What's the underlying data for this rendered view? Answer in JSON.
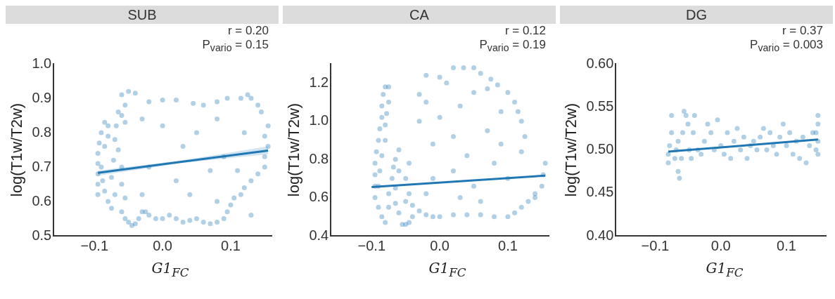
{
  "chart_data": [
    {
      "type": "scatter",
      "title": "SUB",
      "xlabel": "G1$_{FC}$",
      "ylabel": "log(T1w/T2w)",
      "annotations": [
        "r = 0.20",
        "P$_{vario}$ = 0.15"
      ],
      "xlim": [
        -0.16,
        0.16
      ],
      "xticks": [
        {
          "value": -0.1,
          "label": "−0.1"
        },
        {
          "value": 0,
          "label": "0.0"
        },
        {
          "value": 0.1,
          "label": "0.1"
        }
      ],
      "ylim": [
        0.5,
        1.0
      ],
      "yticks": [
        {
          "value": 0.5,
          "label": "0.5"
        },
        {
          "value": 0.6,
          "label": "0.6"
        },
        {
          "value": 0.7,
          "label": "0.7"
        },
        {
          "value": 0.8,
          "label": "0.8"
        },
        {
          "value": 0.9,
          "label": "0.9"
        },
        {
          "value": 1.0,
          "label": "1.0"
        }
      ],
      "series": [
        {
          "marker": "circle",
          "color": "#1f77b4",
          "x": [
            -0.095,
            -0.095,
            -0.095,
            -0.095,
            -0.095,
            -0.093,
            -0.09,
            -0.085,
            -0.08,
            -0.08,
            -0.085,
            -0.09,
            -0.088,
            -0.085,
            -0.08,
            -0.075,
            -0.07,
            -0.075,
            -0.072,
            -0.07,
            -0.068,
            -0.065,
            -0.06,
            -0.055,
            -0.065,
            -0.06,
            -0.06,
            -0.055,
            -0.06,
            -0.055,
            -0.05,
            -0.045,
            -0.04,
            -0.035,
            -0.03,
            -0.025,
            -0.02,
            -0.01,
            0.0,
            0.01,
            0.02,
            0.03,
            0.04,
            0.05,
            0.06,
            0.07,
            0.08,
            0.09,
            0.095,
            0.1,
            0.105,
            0.115,
            0.12,
            0.13,
            0.14,
            0.15,
            0.15,
            0.155,
            0.15,
            0.155,
            0.145,
            0.14,
            0.13,
            0.125,
            0.115,
            0.095,
            0.08,
            0.06,
            0.045,
            0.02,
            0.0,
            -0.02,
            -0.04,
            -0.05,
            -0.06,
            -0.055,
            -0.03,
            0.0,
            0.05,
            0.08,
            0.12,
            0.03,
            0.09,
            -0.02,
            0.02,
            0.07,
            0.11,
            -0.03,
            0.04,
            0.08,
            0.13
          ],
          "values": [
            0.62,
            0.65,
            0.68,
            0.71,
            0.74,
            0.77,
            0.8,
            0.83,
            0.82,
            0.79,
            0.76,
            0.7,
            0.66,
            0.63,
            0.6,
            0.58,
            0.62,
            0.67,
            0.72,
            0.78,
            0.82,
            0.86,
            0.85,
            0.83,
            0.75,
            0.7,
            0.65,
            0.61,
            0.57,
            0.55,
            0.54,
            0.53,
            0.535,
            0.55,
            0.57,
            0.57,
            0.56,
            0.55,
            0.55,
            0.56,
            0.55,
            0.54,
            0.545,
            0.55,
            0.54,
            0.535,
            0.54,
            0.55,
            0.57,
            0.59,
            0.61,
            0.62,
            0.64,
            0.66,
            0.68,
            0.7,
            0.73,
            0.76,
            0.79,
            0.82,
            0.86,
            0.88,
            0.9,
            0.91,
            0.9,
            0.9,
            0.89,
            0.88,
            0.885,
            0.895,
            0.895,
            0.89,
            0.915,
            0.92,
            0.91,
            0.88,
            0.84,
            0.82,
            0.8,
            0.84,
            0.8,
            0.76,
            0.73,
            0.7,
            0.66,
            0.69,
            0.69,
            0.62,
            0.62,
            0.6,
            0.56
          ]
        },
        {
          "type": "line",
          "color": "#1f77b4",
          "x": [
            -0.095,
            0.03,
            0.155
          ],
          "values": [
            0.683,
            0.716,
            0.748
          ],
          "lower": [
            0.675,
            0.712,
            0.737
          ],
          "upper": [
            0.69,
            0.72,
            0.76
          ],
          "marker": "none"
        }
      ]
    },
    {
      "type": "scatter",
      "title": "CA",
      "xlabel": "G1$_{FC}$",
      "ylabel": "log(T1w/T2w)",
      "annotations": [
        "r = 0.12",
        "P$_{vario}$ = 0.19"
      ],
      "xlim": [
        -0.16,
        0.16
      ],
      "xticks": [
        {
          "value": -0.1,
          "label": "−0.1"
        },
        {
          "value": 0,
          "label": "0.0"
        },
        {
          "value": 0.1,
          "label": "0.1"
        }
      ],
      "ylim": [
        0.4,
        1.3
      ],
      "yticks": [
        {
          "value": 0.4,
          "label": "0.4"
        },
        {
          "value": 0.6,
          "label": "0.6"
        },
        {
          "value": 0.8,
          "label": "0.8"
        },
        {
          "value": 1.0,
          "label": "1.0"
        },
        {
          "value": 1.2,
          "label": "1.2"
        }
      ],
      "series": [
        {
          "marker": "circle",
          "color": "#1f77b4",
          "x": [
            -0.095,
            -0.095,
            -0.095,
            -0.095,
            -0.093,
            -0.09,
            -0.088,
            -0.085,
            -0.085,
            -0.083,
            -0.08,
            -0.075,
            -0.075,
            -0.078,
            -0.08,
            -0.08,
            -0.085,
            -0.088,
            -0.09,
            -0.09,
            -0.085,
            -0.08,
            -0.075,
            -0.075,
            -0.07,
            -0.068,
            -0.065,
            -0.06,
            -0.06,
            -0.065,
            -0.065,
            -0.06,
            -0.055,
            -0.05,
            -0.045,
            -0.04,
            -0.04,
            -0.05,
            -0.045,
            -0.05,
            -0.045,
            -0.03,
            -0.02,
            -0.01,
            0.0,
            0.02,
            0.04,
            0.06,
            0.08,
            0.1,
            0.11,
            0.12,
            0.13,
            0.14,
            0.15,
            0.152,
            0.155,
            0.14,
            0.12,
            0.125,
            0.12,
            0.115,
            0.11,
            0.1,
            0.085,
            0.075,
            0.06,
            0.05,
            0.035,
            0.02,
            0.0,
            -0.02,
            -0.03,
            -0.03,
            -0.02,
            0.01,
            0.03,
            0.05,
            0.07,
            0.09,
            0.0,
            -0.01,
            0.02,
            0.04,
            0.07,
            0.09,
            -0.01,
            0.02,
            0.05,
            0.08,
            0.1,
            0.03,
            0.06,
            -0.02
          ],
          "values": [
            0.6,
            0.66,
            0.72,
            0.78,
            0.84,
            0.9,
            0.96,
            1.02,
            1.08,
            1.14,
            1.18,
            1.18,
            1.1,
            1.04,
            0.98,
            0.9,
            0.82,
            0.74,
            0.66,
            0.55,
            0.5,
            0.47,
            0.55,
            0.62,
            0.7,
            0.76,
            0.8,
            0.85,
            0.74,
            0.65,
            0.57,
            0.52,
            0.46,
            0.46,
            0.47,
            0.5,
            0.56,
            0.58,
            0.62,
            0.7,
            0.78,
            0.53,
            0.51,
            0.5,
            0.5,
            0.51,
            0.51,
            0.51,
            0.5,
            0.5,
            0.52,
            0.55,
            0.58,
            0.62,
            0.66,
            0.72,
            0.78,
            0.6,
            0.84,
            0.92,
            1.0,
            1.05,
            1.1,
            1.15,
            1.19,
            1.22,
            1.25,
            1.28,
            1.28,
            1.28,
            1.23,
            1.24,
            1.14,
            1.0,
            1.1,
            1.2,
            1.08,
            1.15,
            1.17,
            1.05,
            1.02,
            0.88,
            0.92,
            0.82,
            0.95,
            0.88,
            0.7,
            0.74,
            0.66,
            0.78,
            0.7,
            0.6,
            0.58,
            0.62
          ]
        },
        {
          "type": "line",
          "color": "#1f77b4",
          "x": [
            -0.1,
            0.155
          ],
          "values": [
            0.655,
            0.715
          ],
          "marker": "none"
        }
      ]
    },
    {
      "type": "scatter",
      "title": "DG",
      "xlabel": "G1$_{FC}$",
      "ylabel": "log(T1w/T2w)",
      "annotations": [
        "r = 0.37",
        "P$_{vario}$ = 0.003"
      ],
      "xlim": [
        -0.16,
        0.16
      ],
      "xticks": [
        {
          "value": -0.1,
          "label": "−0.1"
        },
        {
          "value": 0,
          "label": "0.0"
        },
        {
          "value": 0.1,
          "label": "0.1"
        }
      ],
      "ylim": [
        0.4,
        0.6
      ],
      "yticks": [
        {
          "value": 0.4,
          "label": "0.40"
        },
        {
          "value": 0.45,
          "label": "0.45"
        },
        {
          "value": 0.5,
          "label": "0.50"
        },
        {
          "value": 0.55,
          "label": "0.55"
        },
        {
          "value": 0.6,
          "label": "0.60"
        }
      ],
      "series": [
        {
          "marker": "circle",
          "color": "#1f77b4",
          "x": [
            -0.08,
            -0.08,
            -0.078,
            -0.075,
            -0.075,
            -0.07,
            -0.068,
            -0.065,
            -0.065,
            -0.063,
            -0.06,
            -0.058,
            -0.056,
            -0.053,
            -0.05,
            -0.048,
            -0.045,
            -0.042,
            -0.04,
            -0.035,
            -0.03,
            -0.025,
            -0.02,
            -0.015,
            -0.01,
            -0.005,
            0.0,
            0.005,
            0.01,
            0.015,
            0.02,
            0.025,
            0.03,
            0.035,
            0.04,
            0.045,
            0.05,
            0.055,
            0.06,
            0.065,
            0.07,
            0.075,
            0.08,
            0.085,
            0.09,
            0.095,
            0.1,
            0.105,
            0.11,
            0.115,
            0.12,
            0.125,
            0.13,
            0.135,
            0.14,
            0.145,
            0.148,
            0.148,
            0.148,
            0.148,
            0.145
          ],
          "values": [
            0.485,
            0.495,
            0.505,
            0.52,
            0.54,
            0.49,
            0.5,
            0.51,
            0.475,
            0.467,
            0.49,
            0.52,
            0.545,
            0.54,
            0.53,
            0.5,
            0.49,
            0.52,
            0.54,
            0.5,
            0.495,
            0.51,
            0.53,
            0.52,
            0.5,
            0.535,
            0.505,
            0.495,
            0.52,
            0.49,
            0.51,
            0.525,
            0.5,
            0.515,
            0.49,
            0.505,
            0.51,
            0.5,
            0.515,
            0.525,
            0.5,
            0.52,
            0.505,
            0.495,
            0.515,
            0.53,
            0.505,
            0.52,
            0.495,
            0.51,
            0.49,
            0.515,
            0.485,
            0.505,
            0.52,
            0.5,
            0.54,
            0.53,
            0.51,
            0.495,
            0.52
          ]
        },
        {
          "type": "line",
          "color": "#1f77b4",
          "x": [
            -0.08,
            0.148
          ],
          "values": [
            0.498,
            0.512
          ],
          "marker": "none"
        }
      ]
    }
  ]
}
